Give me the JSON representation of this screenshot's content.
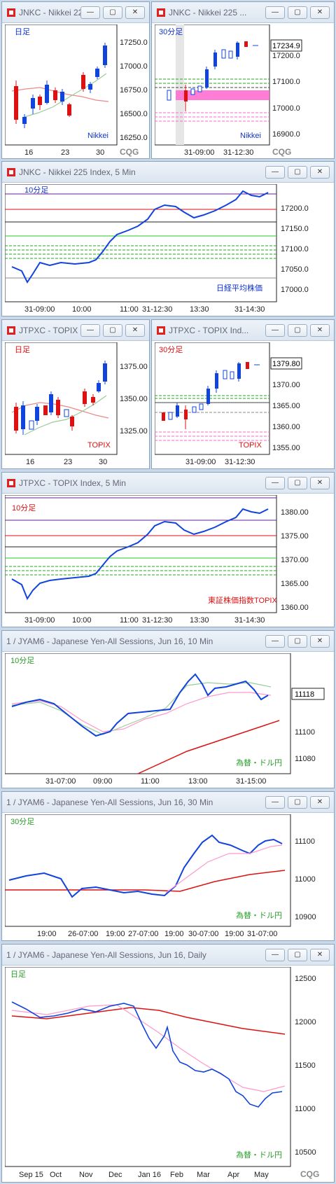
{
  "panels": [
    {
      "id": "p1",
      "title": "JNKC - Nikkei 22...",
      "period": "日足",
      "source": "Nikkei",
      "yticks": [
        "17250.0",
        "17000.0",
        "16750.0",
        "16500.0",
        "16250.0"
      ],
      "xticks": [
        "16",
        "23",
        "30"
      ],
      "last_price": "",
      "logo": "CQG"
    },
    {
      "id": "p2",
      "title": "JNKC - Nikkei 225 ...",
      "period": "30分足",
      "source": "Nikkei",
      "yticks": [
        "17200.0",
        "17100.0",
        "17000.0",
        "16900.0"
      ],
      "xticks": [
        "31-09:00",
        "31-12:30"
      ],
      "last_price": "17234.9",
      "logo": "CQG"
    },
    {
      "id": "p3",
      "title": "JNKC - Nikkei 225 Index, 5 Min",
      "period": "10分足",
      "source": "日経平均株価",
      "yticks": [
        "17200.0",
        "17150.0",
        "17100.0",
        "17050.0",
        "17000.0"
      ],
      "xticks": [
        "31-09:00",
        "10:00",
        "11:00",
        "31-12:30",
        "13:30",
        "31-14:30"
      ],
      "last_price": "",
      "logo": ""
    },
    {
      "id": "p4",
      "title": "JTPXC - TOPIX In...",
      "period": "日足",
      "source": "TOPIX",
      "yticks": [
        "1375.00",
        "1350.00",
        "1325.00"
      ],
      "xticks": [
        "16",
        "23",
        "30"
      ],
      "last_price": "",
      "logo": ""
    },
    {
      "id": "p5",
      "title": "JTPXC - TOPIX Ind...",
      "period": "30分足",
      "source": "TOPIX",
      "yticks": [
        "1379.80",
        "1370.00",
        "1365.00",
        "1360.00",
        "1355.00"
      ],
      "xticks": [
        "31-09:00",
        "31-12:30"
      ],
      "last_price": "1379.80",
      "logo": ""
    },
    {
      "id": "p6",
      "title": "JTPXC - TOPIX Index, 5 Min",
      "period": "10分足",
      "source": "東証株価指数TOPIX",
      "yticks": [
        "1380.00",
        "1375.00",
        "1370.00",
        "1365.00",
        "1360.00"
      ],
      "xticks": [
        "31-09:00",
        "10:00",
        "11:00",
        "31-12:30",
        "13:30",
        "31-14:30"
      ],
      "last_price": "",
      "logo": ""
    },
    {
      "id": "p7",
      "title": "1 / JYAM6 - Japanese Yen-All Sessions, Jun 16, 10 Min",
      "period": "10分足",
      "source": "為替・ドル円",
      "yticks": [
        "11118",
        "11100",
        "11080"
      ],
      "xticks": [
        "31-07:00",
        "09:00",
        "11:00",
        "13:00",
        "31-15:00"
      ],
      "last_price": "11118",
      "logo": ""
    },
    {
      "id": "p8",
      "title": "1 / JYAM6 - Japanese Yen-All Sessions, Jun 16, 30 Min",
      "period": "30分足",
      "source": "為替・ドル円",
      "yticks": [
        "11100",
        "11000",
        "10900"
      ],
      "xticks": [
        "19:00",
        "26-07:00",
        "19:00",
        "27-07:00",
        "19:00",
        "30-07:00",
        "19:00",
        "31-07:00"
      ],
      "last_price": "",
      "logo": ""
    },
    {
      "id": "p9",
      "title": "1 / JYAM6 - Japanese Yen-All Sessions, Jun 16, Daily",
      "period": "日足",
      "source": "為替・ドル円",
      "yticks": [
        "12500",
        "12000",
        "11500",
        "11000",
        "10500"
      ],
      "xticks": [
        "Sep 15",
        "Oct",
        "Nov",
        "Dec",
        "Jan 16",
        "Feb",
        "Mar",
        "Apr",
        "May"
      ],
      "last_price": "",
      "logo": "CQG"
    }
  ],
  "buttons": {
    "minimize": "—",
    "restore": "▢",
    "close": "✕"
  },
  "colors": {
    "up": "#1f4fd6",
    "down": "#d11f1f",
    "accent_pink": "#ff66cc",
    "green": "#2a9c2a"
  }
}
